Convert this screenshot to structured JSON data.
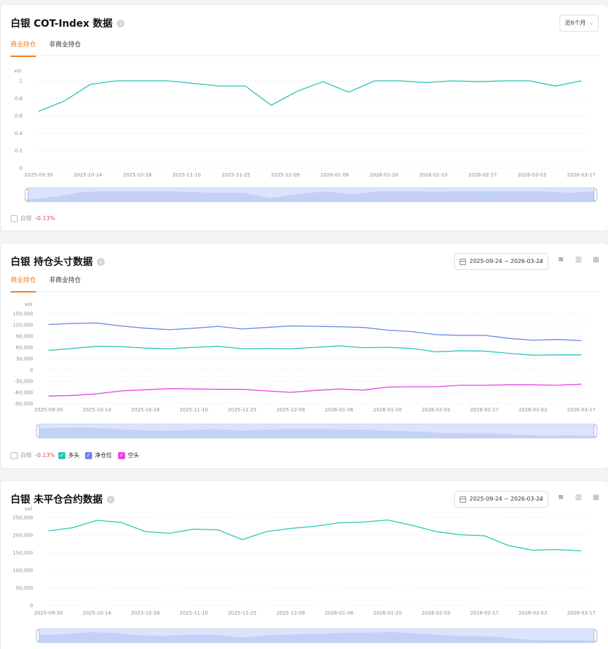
{
  "colors": {
    "accent": "#f07c1e",
    "teal": "#27c4b6",
    "blue": "#6a84e8",
    "magenta": "#e641e6",
    "negative": "#e5484d"
  },
  "cot": {
    "title": "白银 COT-Index 数据",
    "info_icon": "info-icon",
    "period_select": "近6个月",
    "tabs": [
      "商业持仓",
      "非商业持仓"
    ],
    "legend": {
      "name": "白银",
      "change": "-0.13%"
    }
  },
  "positions": {
    "title": "白银 持仓头寸数据",
    "date_range": "2025-09-24 ~ 2026-03-24",
    "tools": [
      "line-chart-icon",
      "bar-chart-icon",
      "table-icon"
    ],
    "tabs": [
      "商业持仓",
      "非商业持仓"
    ],
    "legend": {
      "name": "白银",
      "change": "-0.13%",
      "series": [
        "多头",
        "净仓位",
        "空头"
      ]
    }
  },
  "open_interest": {
    "title": "白银 未平仓合约数据",
    "date_range": "2025-09-24 ~ 2026-03-24",
    "tools": [
      "line-chart-icon",
      "bar-chart-icon",
      "table-icon"
    ]
  },
  "chart_data": [
    {
      "type": "line",
      "ylabel": "vol",
      "ylim": [
        0,
        1
      ],
      "yticks": [
        "0",
        "0.2",
        "0.4",
        "0.6",
        "0.8",
        "1"
      ],
      "xticks": [
        "2025-09-30",
        "2025-10-14",
        "2025-10-28",
        "2025-11-10",
        "2025-11-25",
        "2025-12-09",
        "2026-01-06",
        "2026-01-20",
        "2026-02-03",
        "2026-02-17",
        "2026-03-03",
        "2026-03-17"
      ],
      "grid": true,
      "series": [
        {
          "color": "#27c4b6",
          "values": [
            0.65,
            0.77,
            0.96,
            1.0,
            1.0,
            1.0,
            0.97,
            0.94,
            0.94,
            0.72,
            0.88,
            0.99,
            0.87,
            1.0,
            1.0,
            0.98,
            1.0,
            0.99,
            1.0,
            1.0,
            0.94,
            1.0
          ]
        }
      ]
    },
    {
      "type": "line",
      "ylabel": "vol",
      "ylim": [
        -90000,
        150000
      ],
      "yticks": [
        "-90,000",
        "-60,000",
        "-30,000",
        "0",
        "30,000",
        "60,000",
        "90,000",
        "120,000",
        "150,000"
      ],
      "xticks": [
        "2025-09-30",
        "2025-10-14",
        "2025-10-28",
        "2025-11-10",
        "2025-11-25",
        "2025-12-09",
        "2026-01-06",
        "2026-01-20",
        "2026-02-03",
        "2026-02-17",
        "2026-03-03",
        "2026-03-17"
      ],
      "grid": true,
      "series": [
        {
          "name": "多头",
          "color": "#27c4b6",
          "values": [
            52000,
            57000,
            63000,
            62000,
            58000,
            56000,
            60000,
            63000,
            56000,
            57000,
            56000,
            60000,
            64000,
            59000,
            60000,
            57000,
            48000,
            51000,
            50000,
            44000,
            39000,
            40000,
            40000
          ]
        },
        {
          "name": "净仓位",
          "color": "#6a84e8",
          "values": [
            121000,
            124000,
            125000,
            117000,
            111000,
            107000,
            111000,
            116000,
            109000,
            113000,
            117000,
            116000,
            115000,
            113000,
            106000,
            102000,
            94000,
            92000,
            92000,
            84000,
            79000,
            81000,
            78000
          ]
        },
        {
          "name": "空头",
          "color": "#e641e6",
          "values": [
            -70000,
            -68000,
            -64000,
            -56000,
            -53000,
            -50000,
            -51000,
            -52000,
            -52000,
            -56000,
            -60000,
            -55000,
            -51000,
            -54000,
            -46000,
            -45000,
            -45000,
            -41000,
            -41000,
            -40000,
            -40000,
            -41000,
            -38000
          ]
        }
      ]
    },
    {
      "type": "line",
      "ylabel": "vol",
      "ylim": [
        0,
        250000
      ],
      "yticks": [
        "0",
        "50,000",
        "100,000",
        "150,000",
        "200,000",
        "250,000"
      ],
      "xticks": [
        "2025-09-30",
        "2025-10-14",
        "2025-10-28",
        "2025-11-10",
        "2025-11-25",
        "2025-12-09",
        "2026-01-06",
        "2026-01-20",
        "2026-02-03",
        "2026-02-17",
        "2026-03-03",
        "2026-03-17"
      ],
      "grid": true,
      "series": [
        {
          "color": "#27c4b6",
          "values": [
            212000,
            221000,
            242000,
            236000,
            210000,
            205000,
            217000,
            215000,
            187000,
            210000,
            219000,
            225000,
            235000,
            237000,
            243000,
            228000,
            210000,
            201000,
            198000,
            170000,
            157000,
            159000,
            155000
          ]
        }
      ]
    }
  ]
}
